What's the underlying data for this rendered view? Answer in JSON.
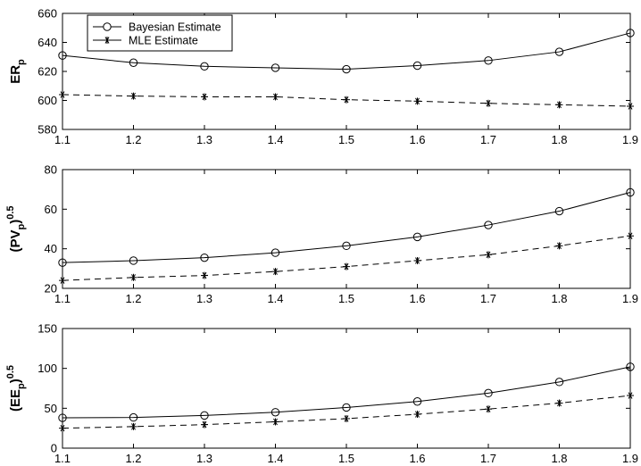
{
  "chart_data": [
    {
      "type": "line",
      "ylabel": "ER",
      "ylabel_sub": "p",
      "ylabel_sup": "",
      "x": [
        1.1,
        1.2,
        1.3,
        1.4,
        1.5,
        1.6,
        1.7,
        1.8,
        1.9
      ],
      "xlim": [
        1.1,
        1.9
      ],
      "ylim": [
        580,
        660
      ],
      "xticks": [
        "1.1",
        "1.2",
        "1.3",
        "1.4",
        "1.5",
        "1.6",
        "1.7",
        "1.8",
        "1.9"
      ],
      "yticks": [
        "580",
        "600",
        "620",
        "640",
        "660"
      ],
      "legend": {
        "placement": "top-left",
        "entries": [
          "Bayesian Estimate",
          "MLE Estimate"
        ]
      },
      "series": [
        {
          "name": "Bayesian Estimate",
          "values": [
            631,
            626,
            623.5,
            622.5,
            621.5,
            624,
            627.5,
            633.5,
            646.5
          ]
        },
        {
          "name": "MLE Estimate",
          "values": [
            604,
            603,
            602.5,
            602.5,
            600.5,
            599.5,
            598,
            597,
            596
          ]
        }
      ]
    },
    {
      "type": "line",
      "ylabel": "(PV",
      "ylabel_sub": "p",
      "ylabel_close": ")",
      "ylabel_sup": "0.5",
      "x": [
        1.1,
        1.2,
        1.3,
        1.4,
        1.5,
        1.6,
        1.7,
        1.8,
        1.9
      ],
      "xlim": [
        1.1,
        1.9
      ],
      "ylim": [
        20,
        80
      ],
      "xticks": [
        "1.1",
        "1.2",
        "1.3",
        "1.4",
        "1.5",
        "1.6",
        "1.7",
        "1.8",
        "1.9"
      ],
      "yticks": [
        "20",
        "40",
        "60",
        "80"
      ],
      "series": [
        {
          "name": "Bayesian Estimate",
          "values": [
            33,
            34,
            35.5,
            38,
            41.5,
            46,
            52,
            59,
            68.5
          ]
        },
        {
          "name": "MLE Estimate",
          "values": [
            24,
            25.5,
            26.5,
            28.5,
            31,
            34,
            37,
            41.5,
            46.5
          ]
        }
      ]
    },
    {
      "type": "line",
      "ylabel": "(EE",
      "ylabel_sub": "p",
      "ylabel_close": ")",
      "ylabel_sup": "0.5",
      "x": [
        1.1,
        1.2,
        1.3,
        1.4,
        1.5,
        1.6,
        1.7,
        1.8,
        1.9
      ],
      "xlim": [
        1.1,
        1.9
      ],
      "ylim": [
        0,
        150
      ],
      "xticks": [
        "1.1",
        "1.2",
        "1.3",
        "1.4",
        "1.5",
        "1.6",
        "1.7",
        "1.8",
        "1.9"
      ],
      "yticks": [
        "0",
        "50",
        "100",
        "150"
      ],
      "series": [
        {
          "name": "Bayesian Estimate",
          "values": [
            38,
            38.5,
            41,
            45,
            51,
            58.5,
            69,
            83,
            102
          ]
        },
        {
          "name": "MLE Estimate",
          "values": [
            25,
            27,
            29.5,
            33,
            37,
            42.5,
            49,
            56.5,
            66
          ]
        }
      ]
    }
  ]
}
